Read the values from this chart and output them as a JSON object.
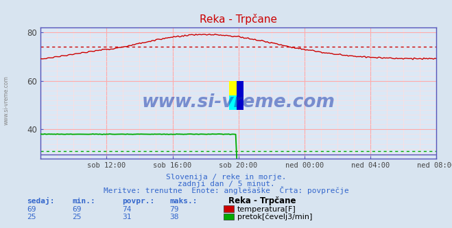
{
  "title": "Reka - Trpčane",
  "bg_color": "#d8e4f0",
  "plot_bg_color": "#dce8f5",
  "text_color": "#3366cc",
  "grid_color_major": "#ffaaaa",
  "grid_color_minor": "#ffdddd",
  "x_tick_labels": [
    "sob 12:00",
    "sob 16:00",
    "sob 20:00",
    "ned 00:00",
    "ned 04:00",
    "ned 08:00"
  ],
  "ylim": [
    28,
    82
  ],
  "yticks": [
    40,
    60,
    80
  ],
  "subtitle_lines": [
    "Slovenija / reke in morje.",
    "zadnji dan / 5 minut.",
    "Meritve: trenutne  Enote: anglešaške  Črta: povprečje"
  ],
  "legend_title": "Reka - Trpčane",
  "legend_entries": [
    {
      "label": "temperatura[F]",
      "color": "#cc0000"
    },
    {
      "label": "pretok[čevelj3/min]",
      "color": "#00aa00"
    }
  ],
  "stats_headers": [
    "sedaj:",
    "min.:",
    "povpr.:",
    "maks.:"
  ],
  "stats_rows": [
    [
      69,
      69,
      74,
      79
    ],
    [
      25,
      25,
      31,
      38
    ]
  ],
  "temp_avg": 74,
  "flow_avg": 31,
  "temp_color": "#cc0000",
  "flow_color": "#00aa00",
  "axis_color": "#5555bb",
  "watermark_text": "www.si-vreme.com",
  "watermark_color": "#1133aa",
  "side_label": "www.si-vreme.com",
  "side_label_color": "#888888"
}
